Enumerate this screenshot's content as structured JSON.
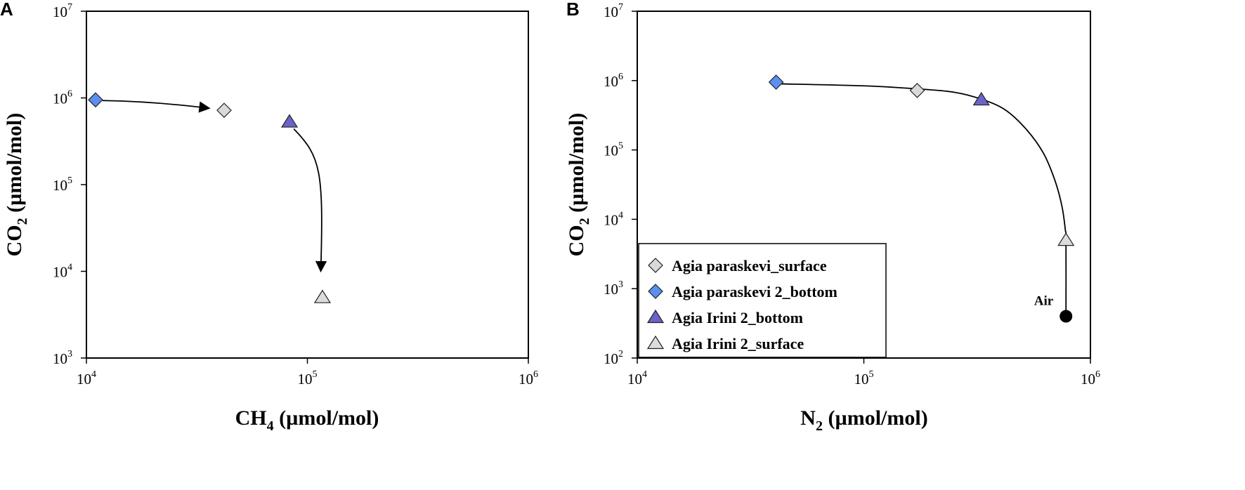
{
  "marker_colors": {
    "diamond_light": "#d9d9d9",
    "diamond_blue": "#5b8ff0",
    "triangle_purple": "#6a63c9",
    "triangle_light": "#dcdcdc",
    "air": "#000000"
  },
  "chart_data": [
    {
      "panel": "A",
      "type": "scatter",
      "xscale": "log",
      "yscale": "log",
      "xlim": [
        10000.0,
        1000000.0
      ],
      "ylim": [
        1000.0,
        10000000.0
      ],
      "x_ticks": [
        {
          "base": "10",
          "exp": "4",
          "value": 10000.0
        },
        {
          "base": "10",
          "exp": "5",
          "value": 100000.0
        },
        {
          "base": "10",
          "exp": "6",
          "value": 1000000.0
        }
      ],
      "y_ticks": [
        {
          "base": "10",
          "exp": "3",
          "value": 1000.0
        },
        {
          "base": "10",
          "exp": "4",
          "value": 10000.0
        },
        {
          "base": "10",
          "exp": "5",
          "value": 100000.0
        },
        {
          "base": "10",
          "exp": "6",
          "value": 1000000.0
        },
        {
          "base": "10",
          "exp": "7",
          "value": 10000000.0
        }
      ],
      "xlabel": {
        "main": "CH",
        "sub": "4",
        "rest": " (µmol/mol)"
      },
      "ylabel": {
        "main": "CO",
        "sub": "2",
        "rest": " (µmol/mol)"
      },
      "grid": false,
      "series": [
        {
          "name": "Agia paraskevi_surface",
          "marker": "diamond",
          "color": "#d9d9d9",
          "x": [
            42000
          ],
          "y": [
            720000
          ]
        },
        {
          "name": "Agia paraskevi 2_bottom",
          "marker": "diamond",
          "color": "#5b8ff0",
          "x": [
            11000
          ],
          "y": [
            950000
          ]
        },
        {
          "name": "Agia Irini  2_bottom",
          "marker": "triangle",
          "color": "#6a63c9",
          "x": [
            83000
          ],
          "y": [
            530000
          ]
        },
        {
          "name": "Agia Irini  2_surface",
          "marker": "triangle",
          "color": "#dcdcdc",
          "x": [
            117000
          ],
          "y": [
            5000
          ]
        }
      ],
      "arrows": [
        {
          "from": [
            11000,
            950000
          ],
          "to": [
            36000,
            760000
          ],
          "curve": "gentle"
        },
        {
          "from": [
            83000,
            530000
          ],
          "to": [
            115000,
            10000
          ],
          "curve": "bend"
        }
      ]
    },
    {
      "panel": "B",
      "type": "scatter",
      "xscale": "log",
      "yscale": "log",
      "xlim": [
        10000.0,
        1000000.0
      ],
      "ylim": [
        100.0,
        10000000.0
      ],
      "x_ticks": [
        {
          "base": "10",
          "exp": "4",
          "value": 10000.0
        },
        {
          "base": "10",
          "exp": "5",
          "value": 100000.0
        },
        {
          "base": "10",
          "exp": "6",
          "value": 1000000.0
        }
      ],
      "y_ticks": [
        {
          "base": "10",
          "exp": "2",
          "value": 100.0
        },
        {
          "base": "10",
          "exp": "3",
          "value": 1000.0
        },
        {
          "base": "10",
          "exp": "4",
          "value": 10000.0
        },
        {
          "base": "10",
          "exp": "5",
          "value": 100000.0
        },
        {
          "base": "10",
          "exp": "6",
          "value": 1000000.0
        },
        {
          "base": "10",
          "exp": "7",
          "value": 10000000.0
        }
      ],
      "xlabel": {
        "main": "N",
        "sub": "2",
        "rest": " (µmol/mol)"
      },
      "ylabel": {
        "main": "CO",
        "sub": "2",
        "rest": " (µmol/mol)"
      },
      "grid": false,
      "legend_position": "bottom-left",
      "legend": [
        {
          "label": "Agia paraskevi_surface",
          "marker": "diamond",
          "color": "#d9d9d9"
        },
        {
          "label": "Agia paraskevi 2_bottom",
          "marker": "diamond",
          "color": "#5b8ff0"
        },
        {
          "label": "Agia Irini  2_bottom",
          "marker": "triangle",
          "color": "#6a63c9"
        },
        {
          "label": "Agia Irini  2_surface",
          "marker": "triangle",
          "color": "#dcdcdc"
        }
      ],
      "series": [
        {
          "name": "Agia paraskevi_surface",
          "marker": "diamond",
          "color": "#d9d9d9",
          "x": [
            172000
          ],
          "y": [
            720000
          ]
        },
        {
          "name": "Agia paraskevi 2_bottom",
          "marker": "diamond",
          "color": "#5b8ff0",
          "x": [
            41000
          ],
          "y": [
            950000
          ]
        },
        {
          "name": "Agia Irini  2_bottom",
          "marker": "triangle",
          "color": "#6a63c9",
          "x": [
            330000
          ],
          "y": [
            530000
          ]
        },
        {
          "name": "Agia Irini  2_surface",
          "marker": "triangle",
          "color": "#dcdcdc",
          "x": [
            780000
          ],
          "y": [
            5000
          ]
        }
      ],
      "air_point": {
        "label": "Air",
        "x": [
          780000
        ],
        "y": [
          400
        ],
        "color": "#000000"
      },
      "mixing_curve": [
        [
          41000,
          900000
        ],
        [
          100000,
          840000
        ],
        [
          172000,
          760000
        ],
        [
          250000,
          680000
        ],
        [
          330000,
          540000
        ],
        [
          420000,
          380000
        ],
        [
          520000,
          200000
        ],
        [
          620000,
          90000
        ],
        [
          700000,
          35000
        ],
        [
          750000,
          15000
        ],
        [
          775000,
          7000
        ],
        [
          780000,
          5000
        ],
        [
          780000,
          400
        ]
      ]
    }
  ]
}
